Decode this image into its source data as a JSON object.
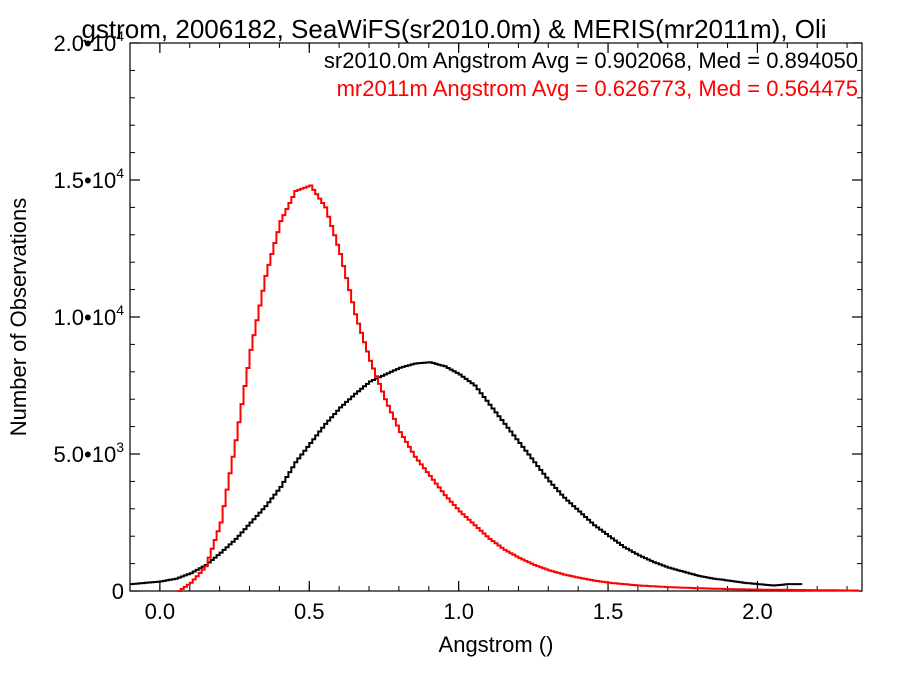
{
  "chart_data": {
    "type": "line",
    "title": "gstrom, 2006182, SeaWiFS(sr2010.0m) & MERIS(mr2011m), Oli",
    "xlabel": "Angstrom ()",
    "ylabel": "Number of Observations",
    "xlim": [
      -0.1,
      2.35
    ],
    "ylim": [
      0,
      20000
    ],
    "grid": false,
    "legend_position": "top-right",
    "x_ticks": [
      {
        "value": 0.0,
        "label": "0.0"
      },
      {
        "value": 0.5,
        "label": "0.5"
      },
      {
        "value": 1.0,
        "label": "1.0"
      },
      {
        "value": 1.5,
        "label": "1.5"
      },
      {
        "value": 2.0,
        "label": "2.0"
      }
    ],
    "y_ticks": [
      {
        "value": 0,
        "mantissa": "0",
        "exponent": ""
      },
      {
        "value": 5000,
        "mantissa": "5.0•10",
        "exponent": "3"
      },
      {
        "value": 10000,
        "mantissa": "1.0•10",
        "exponent": "4"
      },
      {
        "value": 15000,
        "mantissa": "1.5•10",
        "exponent": "4"
      },
      {
        "value": 20000,
        "mantissa": "2.0•10",
        "exponent": "4"
      }
    ],
    "series": [
      {
        "legend": "sr2010.0m Angstrom Avg = 0.902068, Med = 0.894050",
        "color": "#000000",
        "x": [
          -0.1,
          -0.05,
          0.0,
          0.05,
          0.1,
          0.15,
          0.2,
          0.25,
          0.3,
          0.35,
          0.4,
          0.45,
          0.5,
          0.55,
          0.6,
          0.65,
          0.7,
          0.75,
          0.8,
          0.85,
          0.9,
          0.95,
          1.0,
          1.05,
          1.1,
          1.15,
          1.2,
          1.25,
          1.3,
          1.35,
          1.4,
          1.45,
          1.5,
          1.55,
          1.6,
          1.65,
          1.7,
          1.75,
          1.8,
          1.85,
          1.9,
          1.95,
          2.0,
          2.05,
          2.1,
          2.14
        ],
        "y": [
          250,
          300,
          350,
          450,
          650,
          950,
          1400,
          1900,
          2500,
          3100,
          3800,
          4700,
          5400,
          6100,
          6700,
          7200,
          7650,
          7900,
          8150,
          8300,
          8350,
          8200,
          7900,
          7500,
          6800,
          6100,
          5400,
          4700,
          4000,
          3400,
          2900,
          2400,
          2000,
          1600,
          1300,
          1050,
          850,
          700,
          550,
          450,
          380,
          300,
          250,
          200,
          250,
          250
        ]
      },
      {
        "legend": "mr2011m Angstrom Avg = 0.626773, Med = 0.564475",
        "color": "#ff0000",
        "x": [
          0.06,
          0.1,
          0.15,
          0.2,
          0.25,
          0.3,
          0.35,
          0.4,
          0.45,
          0.5,
          0.55,
          0.6,
          0.65,
          0.7,
          0.75,
          0.8,
          0.85,
          0.9,
          0.95,
          1.0,
          1.05,
          1.1,
          1.15,
          1.2,
          1.25,
          1.3,
          1.35,
          1.4,
          1.45,
          1.5,
          1.6,
          1.7,
          1.8,
          1.9,
          2.0,
          2.1,
          2.2,
          2.3,
          2.33
        ],
        "y": [
          0,
          300,
          900,
          2500,
          5500,
          8800,
          11500,
          13500,
          14600,
          14800,
          14000,
          12300,
          10100,
          8400,
          7000,
          5800,
          4900,
          4200,
          3500,
          2900,
          2400,
          1900,
          1500,
          1200,
          950,
          750,
          600,
          480,
          380,
          300,
          200,
          140,
          100,
          70,
          50,
          40,
          30,
          20,
          20
        ]
      }
    ]
  }
}
